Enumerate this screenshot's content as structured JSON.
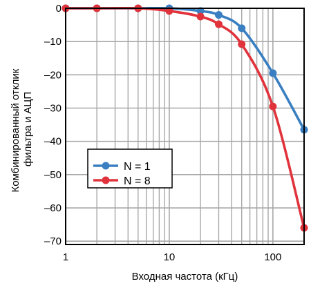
{
  "chart_data": {
    "type": "line",
    "xlabel": "Входная частота (кГц)",
    "ylabel_lines": [
      "Комбинированный отклик",
      "фильтра и АЦП"
    ],
    "x_scale": "log",
    "xlim": [
      1,
      200
    ],
    "ylim": [
      -71,
      0
    ],
    "x_ticks": [
      {
        "value": 1,
        "label": "1"
      },
      {
        "value": 10,
        "label": "10"
      },
      {
        "value": 100,
        "label": "100"
      }
    ],
    "y_ticks": [
      {
        "value": 0,
        "label": "0"
      },
      {
        "value": -10,
        "label": "–10"
      },
      {
        "value": -20,
        "label": "–20"
      },
      {
        "value": -30,
        "label": "–30"
      },
      {
        "value": -40,
        "label": "–40"
      },
      {
        "value": -50,
        "label": "–50"
      },
      {
        "value": -60,
        "label": "–60"
      },
      {
        "value": -70,
        "label": "–70"
      }
    ],
    "x_minor_gridlines": [
      2,
      3,
      4,
      5,
      6,
      7,
      8,
      9,
      20,
      30,
      40,
      50,
      60,
      70,
      80,
      90,
      200
    ],
    "grid": true,
    "legend_position": "lower-left",
    "series": [
      {
        "name": "N = 1",
        "color": "#3a7fc1",
        "x": [
          1,
          2,
          5,
          10,
          20,
          30,
          50,
          100,
          200
        ],
        "y": [
          0,
          0,
          0,
          0,
          -0.8,
          -2,
          -6,
          -19.5,
          -36.5
        ]
      },
      {
        "name": "N = 8",
        "color": "#e0333c",
        "x": [
          1,
          2,
          5,
          10,
          20,
          30,
          50,
          100,
          200
        ],
        "y": [
          0,
          0,
          0,
          -0.8,
          -2.5,
          -4.8,
          -10.8,
          -29.5,
          -66
        ]
      }
    ]
  }
}
